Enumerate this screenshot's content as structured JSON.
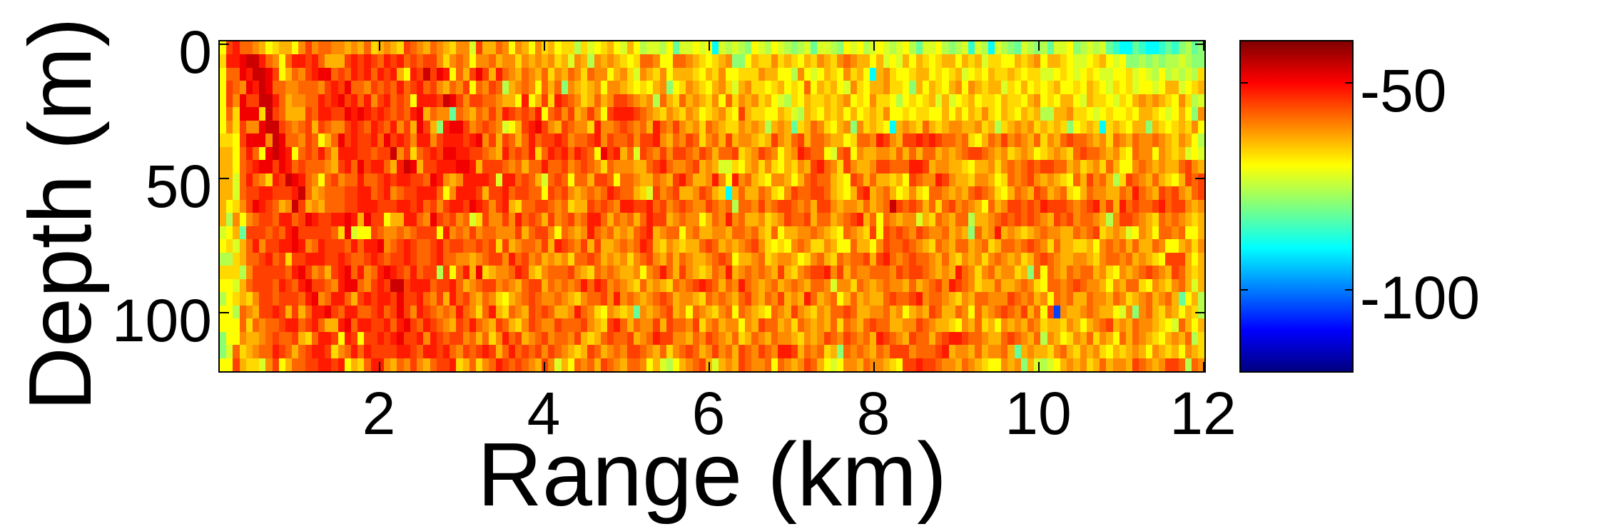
{
  "chart_data": {
    "type": "heatmap",
    "title": "",
    "xlabel": "Range (km)",
    "ylabel": "Depth (m)",
    "xlim": [
      0.04,
      12.04
    ],
    "ylim": [
      -2.5,
      122.5
    ],
    "y_reversed": true,
    "x_ticks": [
      2,
      4,
      6,
      8,
      10,
      12
    ],
    "x_tick_labels": [
      "2",
      "4",
      "6",
      "8",
      "10",
      "12"
    ],
    "y_ticks": [
      0,
      50,
      100
    ],
    "y_tick_labels": [
      "0",
      "50",
      "100"
    ],
    "x_start_km": 0.08,
    "x_step_km": 0.08,
    "n_cols": 150,
    "y_start_m": 0,
    "y_step_m": 5,
    "n_rows": 25,
    "colormap": "jet",
    "clim": [
      -120,
      -40
    ],
    "colorbar": {
      "ticks": [
        -50,
        -100
      ],
      "tick_labels": [
        "-50",
        "-100"
      ],
      "label": ""
    },
    "value_units": "dB",
    "value_encoding": {
      "A": -43,
      "B": -46,
      "C": -49,
      "D": -52,
      "E": -55,
      "F": -58,
      "G": -61,
      "H": -64,
      "I": -67,
      "J": -70,
      "K": -73,
      "L": -76,
      "M": -79,
      "N": -82,
      "O": -86,
      "P": -90,
      "Q": -105
    },
    "rows": [
      "JEDFFGHJIHHJGEGFFGGHGHFIHGHIEFGHFGHIGGKEHHFGJGHJGIHJIILIKJIHJKHJLKKLJNKKJKJPKLKLMJKLJKLMLKNKKLMJKJLKJKLKJLNKKJLMLKOKLPKLMNKLMLNKKJMLKLKNOPPNOPPONOMLNM",
      "IDDCBBDFGJFDDEDFHHHEDEDEFDEDFEFEEGIGFGJGGFHGGIGHGHGIHKGHLGHGHIJIFFGJJFFGHIJIHGMMJHIIGIHIJHIGHIGFGHHJHKJKHJHIJIHHJHIHKIIJJHIHGJHHIJKKJIHJKJMMLMLMLLKLMM",
      "JFFCDBBCEJHFGEDCCFEFDEDFDEDHJDEBECDJFHECEHDFGHFGHFIGHFGIFGGJHGIKGHIGJHHHIJHIGJJIIIGHHJJLGJKJHIJGIHJPHGIJJIHHJIJIHKJIJHIIHIJIIKKJIJKJIJKKJJIKJKLJLKLKLI",
      "JEFGCDBCFFGGFFFGEDECFFGEFEFDFEDFEGHFGEJFGEFLHGFGJFHFMGHIHGJGGHIJIJHGMJIGHIJHGIKHGIIJIHJIJFJHIHJKGIJHHGIIJMHJHIJHGJGHIHHKIJHJIJIHJJIJHIJKIJIKJJKJHHKJIH",
      "JEGCEEBBDFHGGFFDEDCEDFDGEDFEFJDDDEBCEGEEFFGHHJDJHEIDEFGIHFHGEEFGHGLFHIFHGHIGJFIGHGIHJKLIJHIIHIHGJIJGIIJLJIJIHKHKJIHJIIJHIIJHGJIJHHJKHIIJKIJHGHGHIJGILK",
      "JFICCCIBEFHHHEFDDEECDCDEDEFEFDCHFGGNFGHFGEGDEFEFDJFEGEHGEGJEDDDEFGHIGHIGHJIHGIJEHIIJJHIKLHIJHIHJHJIHIGJJIJIIJJHJHJHIGIJHIJHIHLLHHGIIJKJIJJIJHHIJKJHJMG",
      "JGIEGGCBBEFGFEHEFGGEDEFDEFDGEHCEHMDCCEGFEFGKJHEDCEGHEFGGIDGGFEFGFHDFGEGHGIFGHIIGHGHLHGHNIHFGIJHGMGIHIJPHGHIFHIHGGHHGIHLIHGHGIHIHIMJIHIPIHIJHHMHIJIHIGJ",
      "IIJECCCGBCFFGEFJHFCEDEEDFCEDEGDDGEDDDEDCGEHEFHFDFEEDEGFFEDGEFFEGEEDGHFGEFIGFHEHGGHIHEGHFEHFFGHHJIFFGDEGHEEDEDEFFGFIJHFGEGFGHFIGHFEFFGHGIFGHFGGFGHIGHJL",
      "HHJFDFJCBCDJFEFDFHDDDEEFEEBGEIFEDECCDDEEFGHDFEFDIFDEDFDEFJCEDHFKEFGEGEEFGEFHFFEIHGEFGJHGDEFFJKFEJGHHGGHFHFHFFHGHGFEEFGHGIHGHJIHGHIFEFFGHGIJFGGJGHIHKJK",
      "HHJFEDCCECDFEFFFGHEDFCEDDFHDBCHEEDDDCCDHEEEFGFHFFDFFEGFEFGIFGGGHHFEDFGGFEHGHKKIJHGIGIJHIGHEDFGIEGHHGEEFFFDDEHGGHHIJHHGIGFGFEFEEFFHGIHGIFHJJGFGHGHHFEGH",
      "HHKFDFGIDEBCDFGJFEGFFDFFEDEDDEEFCDGHGDDDDEKDDFEFHKFEFJFFHEEFJFFGHHFGHEDFHHGDGJDGFHIJGGHJHFEFFHIJEFHFHHIHJEFGGDEGHHIGGHJIFGFEGHGHIJFHEGFHLIEFGHFHIJHEFE",
      "HHKFEEDDEEEDBFHGFFFEEDDFEDGFEEDDDFJGDDDEHEEDFEEFFJEFEGHGFGFDEFFHIKEGFEHHGEFHIPHFHHFGIJGEFFEEFHIJHEDHGFHJIGIJFFGHGHFEFGIJHFGHEFHGFIJHFGGHHFGDFGHEFEGHFE",
      "HJIGECDEFHGBEHGHFFFEEDDDEEEDDEDFEGEDDECDEGEDHIFFEEFGFIHHEFEFGDDEEDFEGFEFGGEFGFLFFGEGFEEFGFHEEGHGGHFHGFBEFEFHFIFEGFGHJFHGEEFEFDEEEFGFEDGEHDFEFFEDFEEGHG",
      "HLGJGFEEFDDFECDEEDDCDHCEEJHHDDFGCEFEGFKIEGGEGDFEFHEGFEGFDDFHFGFHFDEEHGFGGJHFGDGFHHGIHGEFFEHFFHGFEDHFJFGHGGKHIFGHFFLHHGFEFEFEFGHEFEGFFGHLGEEFGHIFGFGHIH",
      "KJHNEEEFEFDCEEEEEFICKJJEFGGFGFEEEJDGFGEGFFGGGEHFEEGJFGHGDFGFHGHFEDHGFFJGFHHGGHFFGFHIFJHHGGFGHIJFGHIEJEFEFGEFGGFHGHMFHGDHGHIHGFGGHHFGFEIHGHKJGHJFFGFJJH",
      "JIKHFDGEEDDCDGFDEEEFDFDDCGFEDEFFEDFEEFFEFEIEHGFFGEHDEFGEHEHHGFGFDEHIGHIHHFEFHGHGFEGIJIJGFGIIGHJJFHHJGEFFEFGHIFGHFFHGFIHFFGFEFGIFHHIIHJGFGFHFHHFGJJHGIG",
      "LLIHFFEDFEIEEDDDEEDEFFEDEFEEDEFFEDFFGGHGFEEGDFEGFHGHGIFFEFHGHGIGFEGHFHFGHHGFEFJHHGFIHGGHJIGFHIFGFFEHEDFGFEFFGHFHIGHGIGFGHGIHFEFGHHGGHIGFFGFHGHIJEEEHJH",
      "IIILGEEEEEFDCEGFHEDCFDGFDCDEFDFEELEJFDHCIHGGFDEHIGFFFEGHIFGFGHHGJGFDFHEGHIHFGDHGFGFGHEHIGFEEDGEHFGGFFFGEFEEFGHGHDFGIGFHGGIHMFJFGHFGFFHGIJGHGFEFGHEFHIH",
      "JJKHFEEEFDEFDCEEFGDCCFGEDEBBEDDDFEEDFHGFEEGFGHFEEHFGFGFDFDEGFGHIFHGHIFGFEDEFHFGDFGHGFHGFGHFFGKGGIFGHGFGGHFHGFEGDEFGIHHFHHGFGIJFFGFEFGGHJGHFFIJGHIGFHKH",
      "LJIHIGEEFEEEFDCGFDDFHEDEDDECEEDFGEHDFEGHFGIJHGFEFGGFGHIGFFEGDGFGHGFEFHGGHIFGFGHFEGHFGEHGHDFHGFJHFHGHHFEFFEDGFFGHIGHFFGGGEFGFHGJFGFHHFGGHFGIHGFHGFHNJHL",
      "JJLFGHEEDEHEHFDDCEFDDFFEDFECEGDEFGFGDFGIFDHIFGHEFEFHHGDFGIJGHIHNGHGFEHGJFGHIGFJFGHIJFGHEGHIGHFFEFHHGGFHGJHGHEFHHFGJFHGFEFGEHFJEQGHHGFGHHJKGMGFHIGHJHIL",
      "JJJFIFGFFEDDFEDFHHDCFDDEEDFDCEFDEFGHEFDFGHEFHIGEFGGEFFFEGHIEDFHFGGEHEFFGEIGFHGGJGHEFFHGIFGHGHFIFGHFEFFHHGGEFGHHIJGHFIHJGHGHFGIHHIGHJHGFEHGHFGGHIJKFHJH",
      "MJJGHHGFEFFEHIFDDEJDEJEEDEDCEEDGDEFEEGFHFIGDFEHGFEGFFGEHIHFEFFEHGFDEEGGHFGEFGHFIHFGHFGGHIGHGEFGEFGFHDEFGHEFFHFEDDEFFGHHFEFGHFLGHJIGHFIGHJFHFGHIJHGHFLI",
      "MKFIHGFFDEFHFEDDEIGFDFDEEEEDDEFDDEDFGEFEDEHFDFEFEGEFGHIHEFHGFGEEFGHFIGFEFHGEGFHEFGEFGDDEHFGFIHMFGFGHFGEEEGFFFEDHGGHFHGGFHNHGHHIGFHIGHGIJHIHGHJGHIHJGHI",
      "JJEHIIKGEJHFFEEDDEDJHIFDDGHFGEGHFEEDIHFIGFDEFEFGHEGKHJFGFHEFGHFFGJHKLJHGFEHKHGHEFGGFJFGHGEFHJKJGGHFGGHIJEEDEEFGGHFGHIJJGHGMHKLKJHGHGIHFHGGHEFGHGEEFLFG"
    ]
  },
  "axes": {
    "xlabel": "Range (km)",
    "ylabel": "Depth (m)",
    "x_tick_labels": [
      "2",
      "4",
      "6",
      "8",
      "10",
      "12"
    ],
    "y_tick_labels": [
      "0",
      "50",
      "100"
    ],
    "colorbar_tick_labels": [
      "-50",
      "-100"
    ]
  },
  "colors": {
    "background": "#ffffff",
    "axes": "#000000"
  }
}
